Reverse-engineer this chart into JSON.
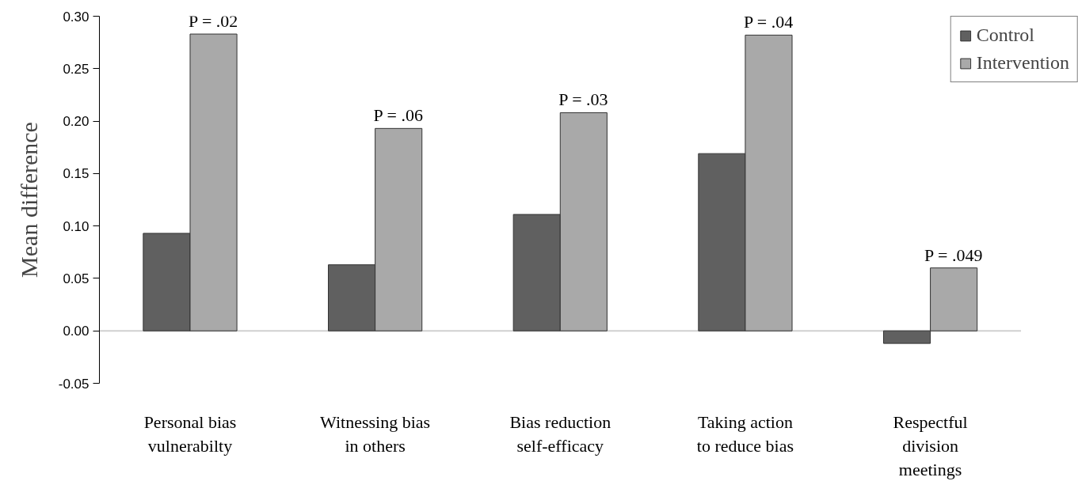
{
  "chart_data": {
    "type": "bar",
    "ylabel": "Mean difference",
    "categories": [
      "Personal bias\nvulnerabilty",
      "Witnessing bias\nin others",
      "Bias reduction\nself-efficacy",
      "Taking action\nto reduce bias",
      "Respectful\ndivision\nmeetings"
    ],
    "series": [
      {
        "name": "Control",
        "color": "#606060",
        "values": [
          0.093,
          0.063,
          0.111,
          0.169,
          -0.012
        ]
      },
      {
        "name": "Intervention",
        "color": "#a9a9a9",
        "values": [
          0.283,
          0.193,
          0.208,
          0.282,
          0.06
        ]
      }
    ],
    "ylim": [
      -0.05,
      0.3
    ],
    "yticks": [
      {
        "value": -0.05,
        "label": "-0.05"
      },
      {
        "value": 0.0,
        "label": "0.00"
      },
      {
        "value": 0.05,
        "label": "0.05"
      },
      {
        "value": 0.1,
        "label": "0.10"
      },
      {
        "value": 0.15,
        "label": "0.15"
      },
      {
        "value": 0.2,
        "label": "0.20"
      },
      {
        "value": 0.25,
        "label": "0.25"
      },
      {
        "value": 0.3,
        "label": "0.30"
      }
    ],
    "annotations": [
      {
        "text": "P = .02",
        "x": "Personal bias\nvulnerabilty",
        "y": 0.283
      },
      {
        "text": "P = .06",
        "x": "Witnessing bias\nin others",
        "y": 0.193
      },
      {
        "text": "P = .03",
        "x": "Bias reduction\nself-efficacy",
        "y": 0.208
      },
      {
        "text": "P = .04",
        "x": "Taking action\nto reduce bias",
        "y": 0.282
      },
      {
        "text": "P = .049",
        "x": "Respectful\ndivision\nmeetings",
        "y": 0.06
      }
    ],
    "ref_lines": [
      {
        "axis": "y",
        "value": 0,
        "color": "#d0d0d0"
      }
    ],
    "grid": false,
    "legend": "top right"
  }
}
